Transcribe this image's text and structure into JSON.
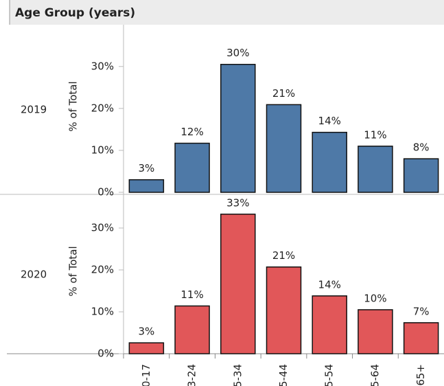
{
  "chart_data": {
    "type": "bar",
    "title": "Age Group (years)",
    "y_label": "% of Total",
    "categories": [
      "0-17",
      "3-24",
      "5-34",
      "5-44",
      "5-54",
      "5-64",
      "65+"
    ],
    "panels": [
      {
        "name": "2019",
        "color": "#4e79a7",
        "values": [
          3,
          11.7,
          30.5,
          20.9,
          14.3,
          11,
          8
        ],
        "value_labels": [
          "3%",
          "12%",
          "30%",
          "21%",
          "14%",
          "11%",
          "8%"
        ],
        "ylim": [
          0,
          39.3
        ],
        "yticks": [
          {
            "value": 0,
            "label": "0%"
          },
          {
            "value": 10,
            "label": "10%"
          },
          {
            "value": 20,
            "label": "20%"
          },
          {
            "value": 30,
            "label": "30%"
          }
        ]
      },
      {
        "name": "2020",
        "color": "#e15759",
        "values": [
          2.6,
          11.4,
          33.3,
          20.7,
          13.8,
          10.5,
          7.4
        ],
        "value_labels": [
          "3%",
          "11%",
          "33%",
          "21%",
          "14%",
          "10%",
          "7%"
        ],
        "ylim": [
          0,
          37.7
        ],
        "yticks": [
          {
            "value": 0,
            "label": "0%"
          },
          {
            "value": 10,
            "label": "10%"
          },
          {
            "value": 20,
            "label": "20%"
          },
          {
            "value": 30,
            "label": "30%"
          }
        ]
      }
    ]
  }
}
